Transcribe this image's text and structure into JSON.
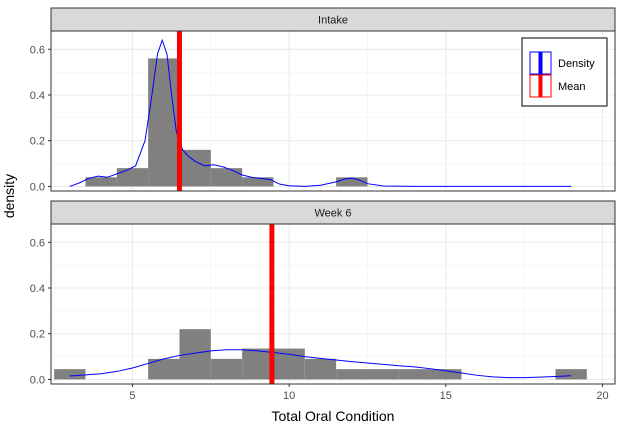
{
  "chart_data": {
    "type": "bar",
    "xlabel": "Total Oral Condition",
    "ylabel": "density",
    "xlim": [
      2.4,
      20.4
    ],
    "ylim": [
      -0.02,
      0.68
    ],
    "x_ticks": [
      5,
      10,
      15,
      20
    ],
    "y_ticks": [
      0.0,
      0.2,
      0.4,
      0.6
    ],
    "y_tick_labels": [
      "0.0",
      "0.2",
      "0.4",
      "0.6"
    ],
    "grid": true,
    "legend": {
      "position": "top-right",
      "entries": [
        {
          "label": "Density",
          "color": "#0000ff"
        },
        {
          "label": "Mean",
          "color": "#ff0000"
        }
      ]
    },
    "colors": {
      "histogram": "#808080",
      "density": "#0000ff",
      "mean": "#ff0000",
      "strip_background": "#d9d9d9"
    },
    "bin_width": 1,
    "panels": [
      {
        "strip_label": "Intake",
        "mean": 6.5,
        "bins": [
          {
            "x0": 3.5,
            "x1": 4.5,
            "density": 0.04
          },
          {
            "x0": 4.5,
            "x1": 5.5,
            "density": 0.08
          },
          {
            "x0": 5.5,
            "x1": 6.5,
            "density": 0.56
          },
          {
            "x0": 6.5,
            "x1": 7.5,
            "density": 0.16
          },
          {
            "x0": 7.5,
            "x1": 8.5,
            "density": 0.08
          },
          {
            "x0": 8.5,
            "x1": 9.5,
            "density": 0.04
          },
          {
            "x0": 11.5,
            "x1": 12.5,
            "density": 0.04
          }
        ],
        "density_curve": {
          "x": [
            3.0,
            3.3,
            3.6,
            3.9,
            4.2,
            4.5,
            4.8,
            5.1,
            5.4,
            5.6,
            5.8,
            5.95,
            6.1,
            6.25,
            6.4,
            6.6,
            6.8,
            7.0,
            7.3,
            7.6,
            7.9,
            8.2,
            8.5,
            8.8,
            9.1,
            9.4,
            9.7,
            10.0,
            10.5,
            11.0,
            11.5,
            11.8,
            12.0,
            12.2,
            12.5,
            13.0,
            14.0,
            16.0,
            18.0,
            19.0
          ],
          "y": [
            0.0,
            0.015,
            0.035,
            0.045,
            0.04,
            0.055,
            0.07,
            0.09,
            0.2,
            0.38,
            0.58,
            0.64,
            0.58,
            0.4,
            0.24,
            0.16,
            0.13,
            0.11,
            0.09,
            0.095,
            0.085,
            0.07,
            0.05,
            0.04,
            0.035,
            0.03,
            0.01,
            0.003,
            0.0,
            0.005,
            0.02,
            0.033,
            0.036,
            0.03,
            0.012,
            0.002,
            0.0,
            0.0,
            0.0,
            0.0
          ]
        }
      },
      {
        "strip_label": "Week 6",
        "mean": 9.45,
        "bins": [
          {
            "x0": 2.5,
            "x1": 3.5,
            "density": 0.045
          },
          {
            "x0": 5.5,
            "x1": 6.5,
            "density": 0.09
          },
          {
            "x0": 6.5,
            "x1": 7.5,
            "density": 0.22
          },
          {
            "x0": 7.5,
            "x1": 8.5,
            "density": 0.09
          },
          {
            "x0": 8.5,
            "x1": 9.5,
            "density": 0.135
          },
          {
            "x0": 9.5,
            "x1": 10.5,
            "density": 0.135
          },
          {
            "x0": 10.5,
            "x1": 11.5,
            "density": 0.09
          },
          {
            "x0": 11.5,
            "x1": 12.5,
            "density": 0.045
          },
          {
            "x0": 12.5,
            "x1": 13.5,
            "density": 0.045
          },
          {
            "x0": 13.5,
            "x1": 14.5,
            "density": 0.045
          },
          {
            "x0": 14.5,
            "x1": 15.5,
            "density": 0.045
          },
          {
            "x0": 18.5,
            "x1": 19.5,
            "density": 0.045
          }
        ],
        "density_curve": {
          "x": [
            3.0,
            3.5,
            4.0,
            4.5,
            5.0,
            5.5,
            6.0,
            6.5,
            7.0,
            7.5,
            8.0,
            8.5,
            9.0,
            9.5,
            10.0,
            10.5,
            11.0,
            11.5,
            12.0,
            12.5,
            13.0,
            13.5,
            14.0,
            14.5,
            15.0,
            15.5,
            16.0,
            16.5,
            17.0,
            17.5,
            18.0,
            18.5,
            19.0
          ],
          "y": [
            0.015,
            0.02,
            0.025,
            0.035,
            0.05,
            0.07,
            0.09,
            0.105,
            0.115,
            0.125,
            0.13,
            0.13,
            0.125,
            0.118,
            0.11,
            0.1,
            0.092,
            0.085,
            0.078,
            0.072,
            0.066,
            0.06,
            0.055,
            0.047,
            0.038,
            0.028,
            0.018,
            0.011,
            0.008,
            0.008,
            0.01,
            0.013,
            0.016
          ]
        }
      }
    ]
  }
}
